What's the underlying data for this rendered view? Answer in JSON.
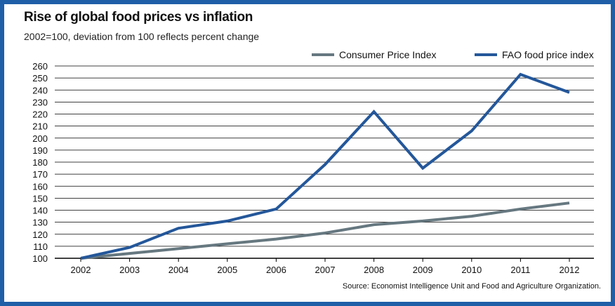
{
  "chart_data": {
    "type": "line",
    "title": "Rise of global food prices vs inflation",
    "subtitle": "2002=100, deviation from 100 reflects percent change",
    "categories": [
      "2002",
      "2003",
      "2004",
      "2005",
      "2006",
      "2007",
      "2008",
      "2009",
      "2010",
      "2011",
      "2012"
    ],
    "series": [
      {
        "name": "Consumer Price Index",
        "color": "#667880",
        "values": [
          100,
          104,
          108,
          112,
          116,
          121,
          128,
          131,
          135,
          141,
          146
        ]
      },
      {
        "name": "FAO food price index",
        "color": "#24579a",
        "values": [
          100,
          109,
          125,
          131,
          141,
          178,
          222,
          175,
          206,
          253,
          238
        ]
      }
    ],
    "yticks": [
      100,
      110,
      120,
      130,
      140,
      150,
      160,
      170,
      180,
      190,
      200,
      210,
      220,
      230,
      240,
      250,
      260
    ],
    "ylim": [
      100,
      260
    ],
    "grid": true,
    "legend_position": "top-right",
    "source": "Source: Economist Intelligence Unit and Food and Agriculture Organization."
  }
}
